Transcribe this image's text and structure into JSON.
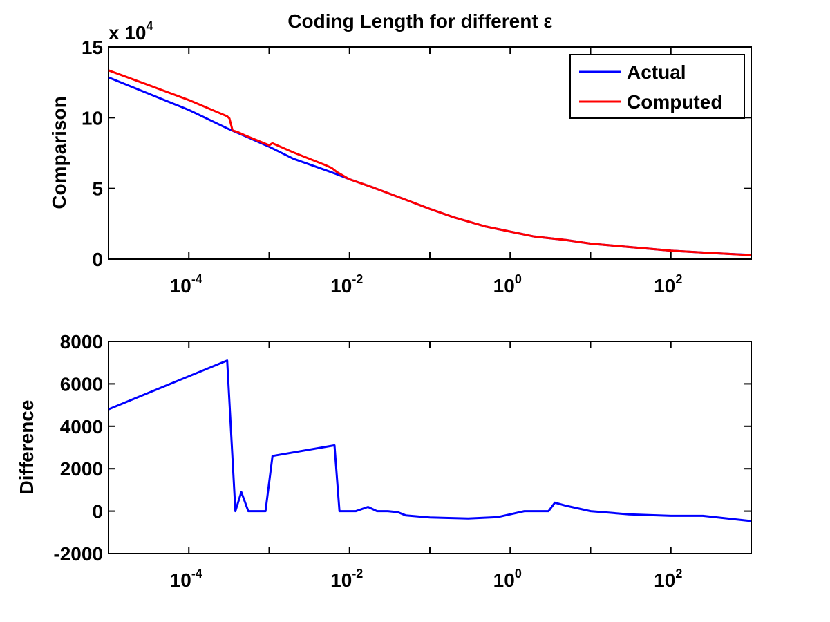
{
  "chart_data": [
    {
      "type": "line",
      "title": "Coding Length for different ε",
      "xlabel": "",
      "ylabel": "Comparison",
      "y_multiplier": "x 10",
      "y_multiplier_exponent": "4",
      "xscale": "log",
      "xlim": [
        1e-05,
        1000
      ],
      "ylim": [
        0,
        15
      ],
      "x_ticks": [
        {
          "value": 0.0001,
          "base": "10",
          "exp": "-4"
        },
        {
          "value": 0.01,
          "base": "10",
          "exp": "-2"
        },
        {
          "value": 1,
          "base": "10",
          "exp": "0"
        },
        {
          "value": 100,
          "base": "10",
          "exp": "2"
        }
      ],
      "y_ticks": [
        {
          "value": 0,
          "label": "0"
        },
        {
          "value": 5,
          "label": "5"
        },
        {
          "value": 10,
          "label": "10"
        },
        {
          "value": 15,
          "label": "15"
        }
      ],
      "legend_position": "top-right",
      "grid": false,
      "series": [
        {
          "name": "Actual",
          "color": "#0000ff",
          "x": [
            1e-05,
            3e-05,
            0.0001,
            0.0003,
            0.0005,
            0.001,
            0.002,
            0.005,
            0.007,
            0.01,
            0.02,
            0.05,
            0.1,
            0.2,
            0.5,
            1,
            2,
            5,
            10,
            20,
            50,
            100,
            200,
            500,
            1000
          ],
          "values": [
            12.85,
            11.75,
            10.55,
            9.25,
            8.7,
            7.95,
            7.1,
            6.3,
            6.0,
            5.65,
            5.05,
            4.2,
            3.55,
            2.95,
            2.3,
            1.95,
            1.6,
            1.35,
            1.1,
            0.95,
            0.75,
            0.6,
            0.5,
            0.38,
            0.3
          ]
        },
        {
          "name": "Computed",
          "color": "#ff0000",
          "x": [
            1e-05,
            3e-05,
            0.0001,
            0.0003,
            0.00032,
            0.00035,
            0.0004,
            0.0005,
            0.001,
            0.0011,
            0.002,
            0.005,
            0.006,
            0.007,
            0.01,
            0.02,
            0.05,
            0.1,
            0.2,
            0.5,
            1,
            2,
            5,
            10,
            20,
            50,
            100,
            200,
            500,
            1000
          ],
          "values": [
            13.35,
            12.35,
            11.25,
            10.1,
            9.95,
            9.1,
            9.0,
            8.75,
            8.05,
            8.2,
            7.55,
            6.65,
            6.45,
            6.15,
            5.65,
            5.05,
            4.2,
            3.55,
            2.95,
            2.3,
            1.95,
            1.6,
            1.35,
            1.1,
            0.95,
            0.75,
            0.6,
            0.5,
            0.38,
            0.28
          ]
        }
      ]
    },
    {
      "type": "line",
      "title": "",
      "xlabel": "",
      "ylabel": "Difference",
      "xscale": "log",
      "xlim": [
        1e-05,
        1000
      ],
      "ylim": [
        -2000,
        8000
      ],
      "x_ticks": [
        {
          "value": 0.0001,
          "base": "10",
          "exp": "-4"
        },
        {
          "value": 0.01,
          "base": "10",
          "exp": "-2"
        },
        {
          "value": 1,
          "base": "10",
          "exp": "0"
        },
        {
          "value": 100,
          "base": "10",
          "exp": "2"
        }
      ],
      "y_ticks": [
        {
          "value": -2000,
          "label": "-2000"
        },
        {
          "value": 0,
          "label": "0"
        },
        {
          "value": 2000,
          "label": "2000"
        },
        {
          "value": 4000,
          "label": "4000"
        },
        {
          "value": 6000,
          "label": "6000"
        },
        {
          "value": 8000,
          "label": "8000"
        }
      ],
      "grid": false,
      "series": [
        {
          "name": "",
          "color": "#0000ff",
          "x": [
            1e-05,
            0.0003,
            0.00038,
            0.00045,
            0.00055,
            0.0009,
            0.0011,
            0.0065,
            0.0075,
            0.012,
            0.017,
            0.022,
            0.03,
            0.04,
            0.05,
            0.1,
            0.3,
            0.7,
            1.0,
            1.5,
            3.0,
            3.6,
            5.0,
            10,
            30,
            100,
            250,
            1000
          ],
          "values": [
            4800,
            7100,
            0,
            900,
            0,
            0,
            2600,
            3100,
            0,
            0,
            200,
            0,
            0,
            -50,
            -200,
            -300,
            -350,
            -280,
            -150,
            0,
            0,
            400,
            250,
            0,
            -150,
            -220,
            -220,
            -470
          ]
        }
      ]
    }
  ]
}
